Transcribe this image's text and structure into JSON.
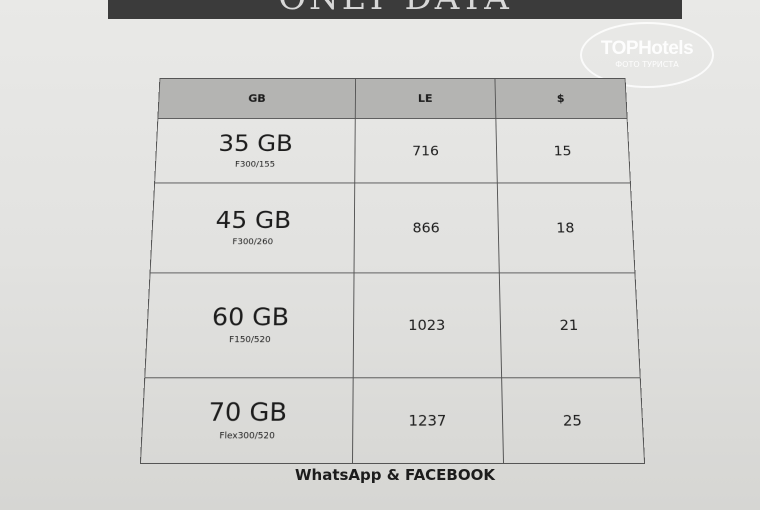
{
  "banner_title": "ONLY DATA",
  "watermark": {
    "brand": "TOPHotels",
    "caption": "ФОТО ТУРИСТА"
  },
  "table": {
    "headers": [
      "GB",
      "LE",
      "$"
    ],
    "rows": [
      {
        "size": "35 GB",
        "plan": "F300/155",
        "le": "716",
        "usd": "15"
      },
      {
        "size": "45 GB",
        "plan": "F300/260",
        "le": "866",
        "usd": "18"
      },
      {
        "size": "60 GB",
        "plan": "F150/520",
        "le": "1023",
        "usd": "21"
      },
      {
        "size": "70 GB",
        "plan": "Flex300/520",
        "le": "1237",
        "usd": "25"
      }
    ]
  },
  "footer": "WhatsApp & FACEBOOK"
}
